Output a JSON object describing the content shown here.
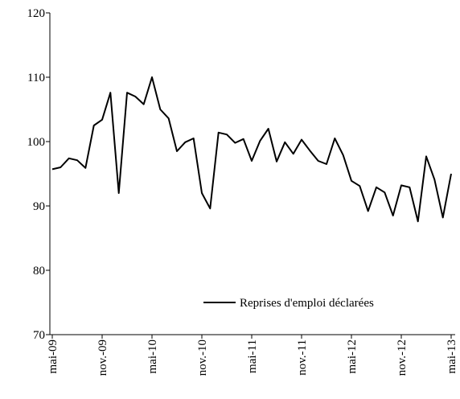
{
  "chart_data": {
    "type": "line",
    "categories": [
      "mai-09",
      null,
      null,
      null,
      null,
      null,
      "nov.-09",
      null,
      null,
      null,
      null,
      null,
      "mai-10",
      null,
      null,
      null,
      null,
      null,
      "nov.-10",
      null,
      null,
      null,
      null,
      null,
      "mai-11",
      null,
      null,
      null,
      null,
      null,
      "nov.-11",
      null,
      null,
      null,
      null,
      null,
      "mai-12",
      null,
      null,
      null,
      null,
      null,
      "nov.-12",
      null,
      null,
      null,
      null,
      null,
      "mai-13"
    ],
    "series": [
      {
        "name": "Reprises d'emploi déclarées",
        "color": "#000000",
        "values": [
          95.7,
          96.0,
          97.4,
          97.1,
          95.9,
          102.5,
          103.4,
          107.6,
          92.0,
          107.6,
          107.0,
          105.8,
          110.0,
          105.0,
          103.6,
          98.5,
          99.9,
          100.5,
          92.0,
          89.6,
          101.4,
          101.1,
          99.8,
          100.4,
          97.0,
          100.1,
          102.0,
          96.9,
          99.9,
          98.1,
          100.3,
          98.6,
          97.0,
          96.5,
          100.5,
          97.9,
          93.9,
          93.1,
          89.2,
          92.9,
          92.1,
          88.5,
          93.2,
          92.9,
          87.6,
          97.7,
          94.1,
          88.2,
          95.0
        ]
      }
    ],
    "ylim": [
      70,
      120
    ],
    "yticks": [
      70,
      80,
      90,
      100,
      110,
      120
    ],
    "grid": false,
    "legend": "lower right"
  }
}
